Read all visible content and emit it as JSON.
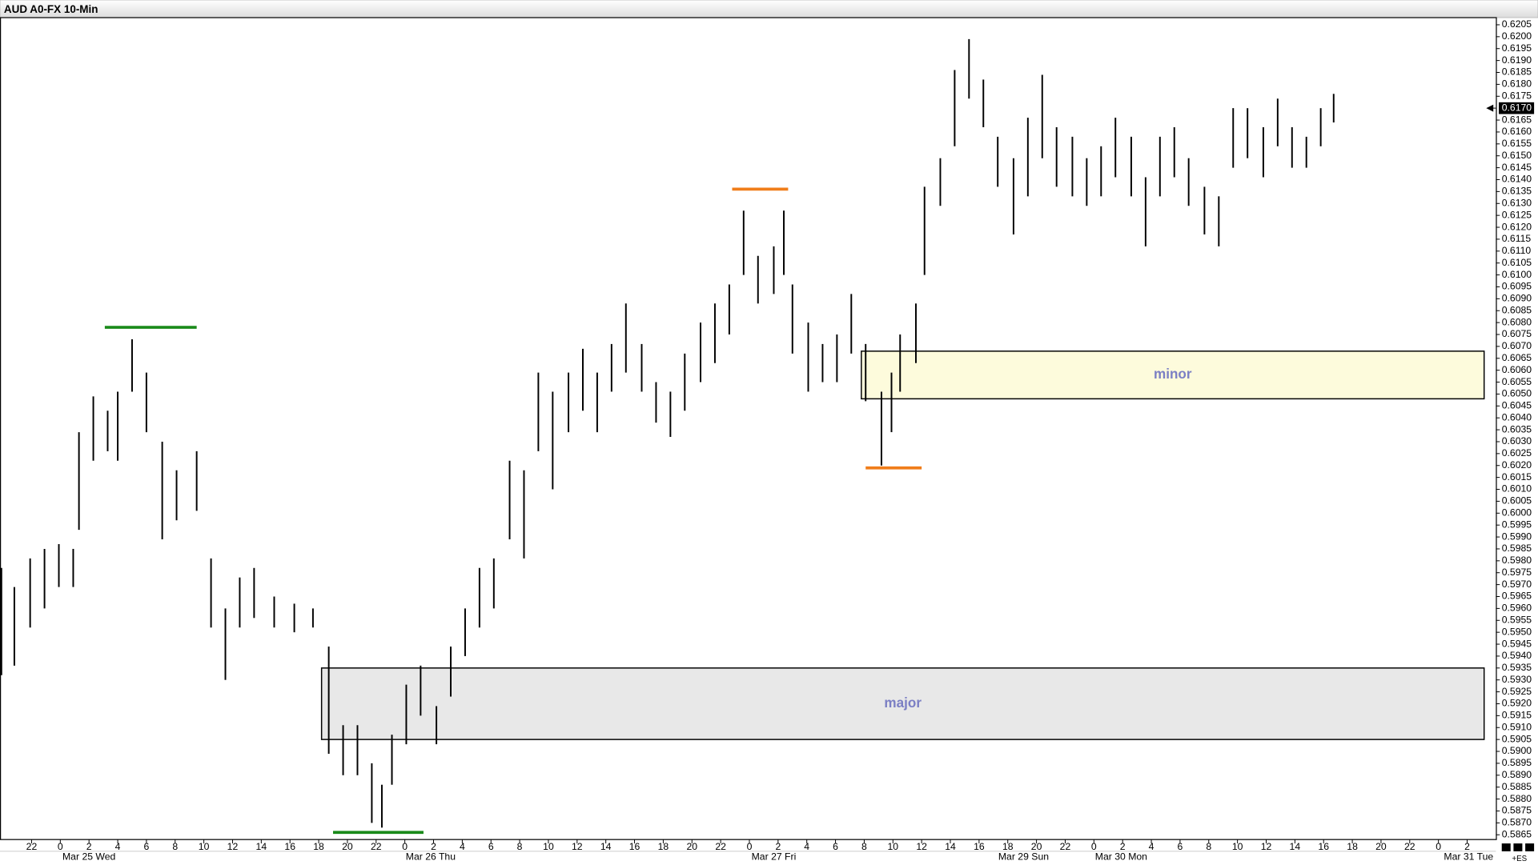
{
  "chart_data": {
    "type": "ohlc",
    "title": "AUD A0-FX 10-Min",
    "color": "#000000",
    "x": [
      -2.1,
      -1.2,
      -0.1,
      0.9,
      1.9,
      2.9,
      3.3,
      4.3,
      5.3,
      6.0,
      7.0,
      8.0,
      9.1,
      10.1,
      11.5,
      12.5,
      13.5,
      14.5,
      15.5,
      16.9,
      18.3,
      19.6,
      20.7,
      21.7,
      22.7,
      23.7,
      24.4,
      25.1,
      26.1,
      27.1,
      28.2,
      29.2,
      30.2,
      31.2,
      32.2,
      33.3,
      34.3,
      35.3,
      36.3,
      37.4,
      38.4,
      39.4,
      40.4,
      41.4,
      42.5,
      43.5,
      44.5,
      45.5,
      46.6,
      47.6,
      48.6,
      49.6,
      50.6,
      51.7,
      52.4,
      53.0,
      54.1,
      55.1,
      56.1,
      57.1,
      58.1,
      59.2,
      59.9,
      60.5,
      61.6,
      62.2,
      63.3,
      64.3,
      65.3,
      66.3,
      67.3,
      68.4,
      69.4,
      70.4,
      71.4,
      72.5,
      73.5,
      74.5,
      75.5,
      76.6,
      77.6,
      78.6,
      79.6,
      80.6,
      81.7,
      82.7,
      83.7,
      84.7,
      85.8,
      86.8,
      87.8,
      88.8,
      89.8,
      90.7
    ],
    "high": [
      0.5977,
      0.5969,
      0.5981,
      0.5985,
      0.5987,
      0.5985,
      0.6034,
      0.6049,
      0.6043,
      0.6051,
      0.6073,
      0.6059,
      0.603,
      0.6018,
      0.6026,
      0.5981,
      0.596,
      0.5973,
      0.5977,
      0.5965,
      0.5962,
      0.596,
      0.5944,
      0.5911,
      0.5911,
      0.5895,
      0.5886,
      0.5907,
      0.5928,
      0.5936,
      0.5919,
      0.5944,
      0.596,
      0.5977,
      0.5981,
      0.6022,
      0.6018,
      0.6059,
      0.6051,
      0.6059,
      0.6069,
      0.6059,
      0.6071,
      0.6088,
      0.6071,
      0.6055,
      0.6051,
      0.6067,
      0.608,
      0.6088,
      0.6096,
      0.6127,
      0.6108,
      0.6112,
      0.6127,
      0.6096,
      0.608,
      0.6071,
      0.6075,
      0.6092,
      0.6071,
      0.6051,
      0.6059,
      0.6075,
      0.6088,
      0.6137,
      0.6149,
      0.6186,
      0.6199,
      0.6182,
      0.6158,
      0.6149,
      0.6166,
      0.6184,
      0.6162,
      0.6158,
      0.6149,
      0.6154,
      0.6166,
      0.6158,
      0.6141,
      0.6158,
      0.6162,
      0.6149,
      0.6137,
      0.6133,
      0.617,
      0.617,
      0.6162,
      0.6174,
      0.6162,
      0.6158,
      0.617,
      0.6176
    ],
    "low": [
      0.5932,
      0.5936,
      0.5952,
      0.596,
      0.5969,
      0.5969,
      0.5993,
      0.6022,
      0.6026,
      0.6022,
      0.6051,
      0.6034,
      0.5989,
      0.5997,
      0.6001,
      0.5952,
      0.593,
      0.5952,
      0.5956,
      0.5952,
      0.595,
      0.5952,
      0.5899,
      0.589,
      0.589,
      0.587,
      0.5868,
      0.5886,
      0.5903,
      0.5915,
      0.5903,
      0.5923,
      0.594,
      0.5952,
      0.596,
      0.5989,
      0.5981,
      0.6026,
      0.601,
      0.6034,
      0.6043,
      0.6034,
      0.6051,
      0.6059,
      0.6051,
      0.6038,
      0.6032,
      0.6043,
      0.6055,
      0.6063,
      0.6075,
      0.61,
      0.6088,
      0.6092,
      0.61,
      0.6067,
      0.6051,
      0.6055,
      0.6055,
      0.6067,
      0.6047,
      0.602,
      0.6034,
      0.6051,
      0.6063,
      0.61,
      0.6129,
      0.6154,
      0.6174,
      0.6162,
      0.6137,
      0.6117,
      0.6133,
      0.6149,
      0.6137,
      0.6133,
      0.6129,
      0.6133,
      0.6141,
      0.6133,
      0.6112,
      0.6133,
      0.6141,
      0.6129,
      0.6117,
      0.6112,
      0.6145,
      0.6149,
      0.6141,
      0.6154,
      0.6145,
      0.6145,
      0.6154,
      0.6164
    ],
    "xlim": [
      -2.2,
      102.0
    ],
    "ylim": [
      0.5863,
      0.6208
    ],
    "xticks": [
      {
        "value": 0,
        "label": "22"
      },
      {
        "value": 2,
        "label": "0"
      },
      {
        "value": 4,
        "label": "2"
      },
      {
        "value": 6,
        "label": "4"
      },
      {
        "value": 8,
        "label": "6"
      },
      {
        "value": 10,
        "label": "8"
      },
      {
        "value": 12,
        "label": "10"
      },
      {
        "value": 14,
        "label": "12"
      },
      {
        "value": 16,
        "label": "14"
      },
      {
        "value": 18,
        "label": "16"
      },
      {
        "value": 20,
        "label": "18"
      },
      {
        "value": 22,
        "label": "20"
      },
      {
        "value": 24,
        "label": "22"
      },
      {
        "value": 26,
        "label": "0"
      },
      {
        "value": 28,
        "label": "2"
      },
      {
        "value": 30,
        "label": "4"
      },
      {
        "value": 32,
        "label": "6"
      },
      {
        "value": 34,
        "label": "8"
      },
      {
        "value": 36,
        "label": "10"
      },
      {
        "value": 38,
        "label": "12"
      },
      {
        "value": 40,
        "label": "14"
      },
      {
        "value": 42,
        "label": "16"
      },
      {
        "value": 44,
        "label": "18"
      },
      {
        "value": 46,
        "label": "20"
      },
      {
        "value": 48,
        "label": "22"
      },
      {
        "value": 50,
        "label": "0"
      },
      {
        "value": 52,
        "label": "2"
      },
      {
        "value": 54,
        "label": "4"
      },
      {
        "value": 56,
        "label": "6"
      },
      {
        "value": 58,
        "label": "8"
      },
      {
        "value": 60,
        "label": "10"
      },
      {
        "value": 62,
        "label": "12"
      },
      {
        "value": 64,
        "label": "14"
      },
      {
        "value": 66,
        "label": "16"
      },
      {
        "value": 68,
        "label": "18"
      },
      {
        "value": 70,
        "label": "20"
      },
      {
        "value": 72,
        "label": "22"
      },
      {
        "value": 74,
        "label": "0"
      },
      {
        "value": 76,
        "label": "2"
      },
      {
        "value": 78,
        "label": "4"
      },
      {
        "value": 80,
        "label": "6"
      },
      {
        "value": 82,
        "label": "8"
      },
      {
        "value": 84,
        "label": "10"
      },
      {
        "value": 86,
        "label": "12"
      },
      {
        "value": 88,
        "label": "14"
      },
      {
        "value": 90,
        "label": "16"
      },
      {
        "value": 92,
        "label": "18"
      },
      {
        "value": 94,
        "label": "20"
      },
      {
        "value": 96,
        "label": "22"
      },
      {
        "value": 98,
        "label": "0"
      },
      {
        "value": 100,
        "label": "2"
      }
    ],
    "day_labels": [
      {
        "value": 4.0,
        "label": "Mar 25 Wed"
      },
      {
        "value": 27.8,
        "label": "Mar 26 Thu"
      },
      {
        "value": 51.7,
        "label": "Mar 27 Fri"
      },
      {
        "value": 69.1,
        "label": "Mar 29 Sun"
      },
      {
        "value": 75.9,
        "label": "Mar 30 Mon"
      },
      {
        "value": 100.1,
        "label": "Mar 31 Tue"
      }
    ],
    "yticks": [
      0.5865,
      {
        "value": 0.587,
        "label": "0.5870"
      },
      0.5875,
      {
        "value": 0.588,
        "label": "0.5880"
      },
      0.5885,
      {
        "value": 0.589,
        "label": "0.5890"
      },
      0.5895,
      {
        "value": 0.59,
        "label": "0.5900"
      },
      0.5905,
      {
        "value": 0.591,
        "label": "0.5910"
      },
      0.5915,
      {
        "value": 0.592,
        "label": "0.5920"
      },
      0.5925,
      {
        "value": 0.593,
        "label": "0.5930"
      },
      0.5935,
      {
        "value": 0.594,
        "label": "0.5940"
      },
      0.5945,
      {
        "value": 0.595,
        "label": "0.5950"
      },
      0.5955,
      {
        "value": 0.596,
        "label": "0.5960"
      },
      0.5965,
      {
        "value": 0.597,
        "label": "0.5970"
      },
      0.5975,
      {
        "value": 0.598,
        "label": "0.5980"
      },
      0.5985,
      {
        "value": 0.599,
        "label": "0.5990"
      },
      0.5995,
      {
        "value": 0.6,
        "label": "0.6000"
      },
      0.6005,
      {
        "value": 0.601,
        "label": "0.6010"
      },
      0.6015,
      {
        "value": 0.602,
        "label": "0.6020"
      },
      0.6025,
      {
        "value": 0.603,
        "label": "0.6030"
      },
      0.6035,
      {
        "value": 0.604,
        "label": "0.6040"
      },
      0.6045,
      {
        "value": 0.605,
        "label": "0.6050"
      },
      0.6055,
      {
        "value": 0.606,
        "label": "0.6060"
      },
      0.6065,
      {
        "value": 0.607,
        "label": "0.6070"
      },
      0.6075,
      {
        "value": 0.608,
        "label": "0.6080"
      },
      0.6085,
      {
        "value": 0.609,
        "label": "0.6090"
      },
      0.6095,
      {
        "value": 0.61,
        "label": "0.6100"
      },
      0.6105,
      {
        "value": 0.611,
        "label": "0.6110"
      },
      0.6115,
      {
        "value": 0.612,
        "label": "0.6120"
      },
      0.6125,
      {
        "value": 0.613,
        "label": "0.6130"
      },
      0.6135,
      {
        "value": 0.614,
        "label": "0.6140"
      },
      0.6145,
      {
        "value": 0.615,
        "label": "0.6150"
      },
      0.6155,
      {
        "value": 0.616,
        "label": "0.6160"
      },
      0.6165,
      0.6175,
      {
        "value": 0.618,
        "label": "0.6180"
      },
      0.6185,
      {
        "value": 0.619,
        "label": "0.6190"
      },
      0.6195,
      {
        "value": 0.62,
        "label": "0.6200"
      },
      0.6205
    ],
    "last_price": {
      "value": 0.617,
      "label": "0.6170"
    },
    "zones": [
      {
        "label": "major",
        "top": 0.5935,
        "bottom": 0.5905,
        "start": 20.2,
        "color": "#e8e8e8",
        "text_color": "#7b7fc4"
      },
      {
        "label": "minor",
        "top": 0.6068,
        "bottom": 0.6048,
        "start": 57.8,
        "color": "#fdfbdc",
        "text_color": "#7b7fc4"
      }
    ],
    "levels": [
      {
        "value": 0.6078,
        "start": 5.1,
        "end": 11.5,
        "color": "#1a8a1a"
      },
      {
        "value": 0.5866,
        "start": 21.0,
        "end": 27.3,
        "color": "#1a8a1a"
      },
      {
        "value": 0.6136,
        "start": 48.8,
        "end": 52.7,
        "color": "#f07d1a"
      },
      {
        "value": 0.6019,
        "start": 58.1,
        "end": 62.0,
        "color": "#f07d1a"
      }
    ],
    "corner_note": "+ES"
  }
}
